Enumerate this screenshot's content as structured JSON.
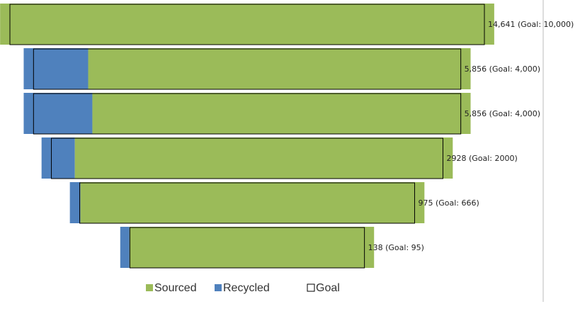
{
  "chart_data": {
    "type": "funnel",
    "log_scale": true,
    "categories": [
      null,
      null,
      null,
      null,
      null,
      null
    ],
    "series": [
      {
        "name": "Recycled",
        "color": "#4f81bd",
        "values": [
          0,
          845,
          900,
          237,
          29,
          5
        ]
      },
      {
        "name": "Sourced",
        "color": "#9bbb59",
        "values": [
          14641,
          5011,
          4956,
          2691,
          946,
          133
        ]
      }
    ],
    "goal": {
      "name": "Goal",
      "values": [
        10000,
        4000,
        4000,
        2000,
        666,
        95
      ]
    },
    "labels": [
      "14,641 (Goal: 10,000)",
      "5,856 (Goal: 4,000)",
      "5,856 (Goal: 4,000)",
      "2928 (Goal: 2000)",
      "975 (Goal: 666)",
      "138 (Goal: 95)"
    ]
  }
}
